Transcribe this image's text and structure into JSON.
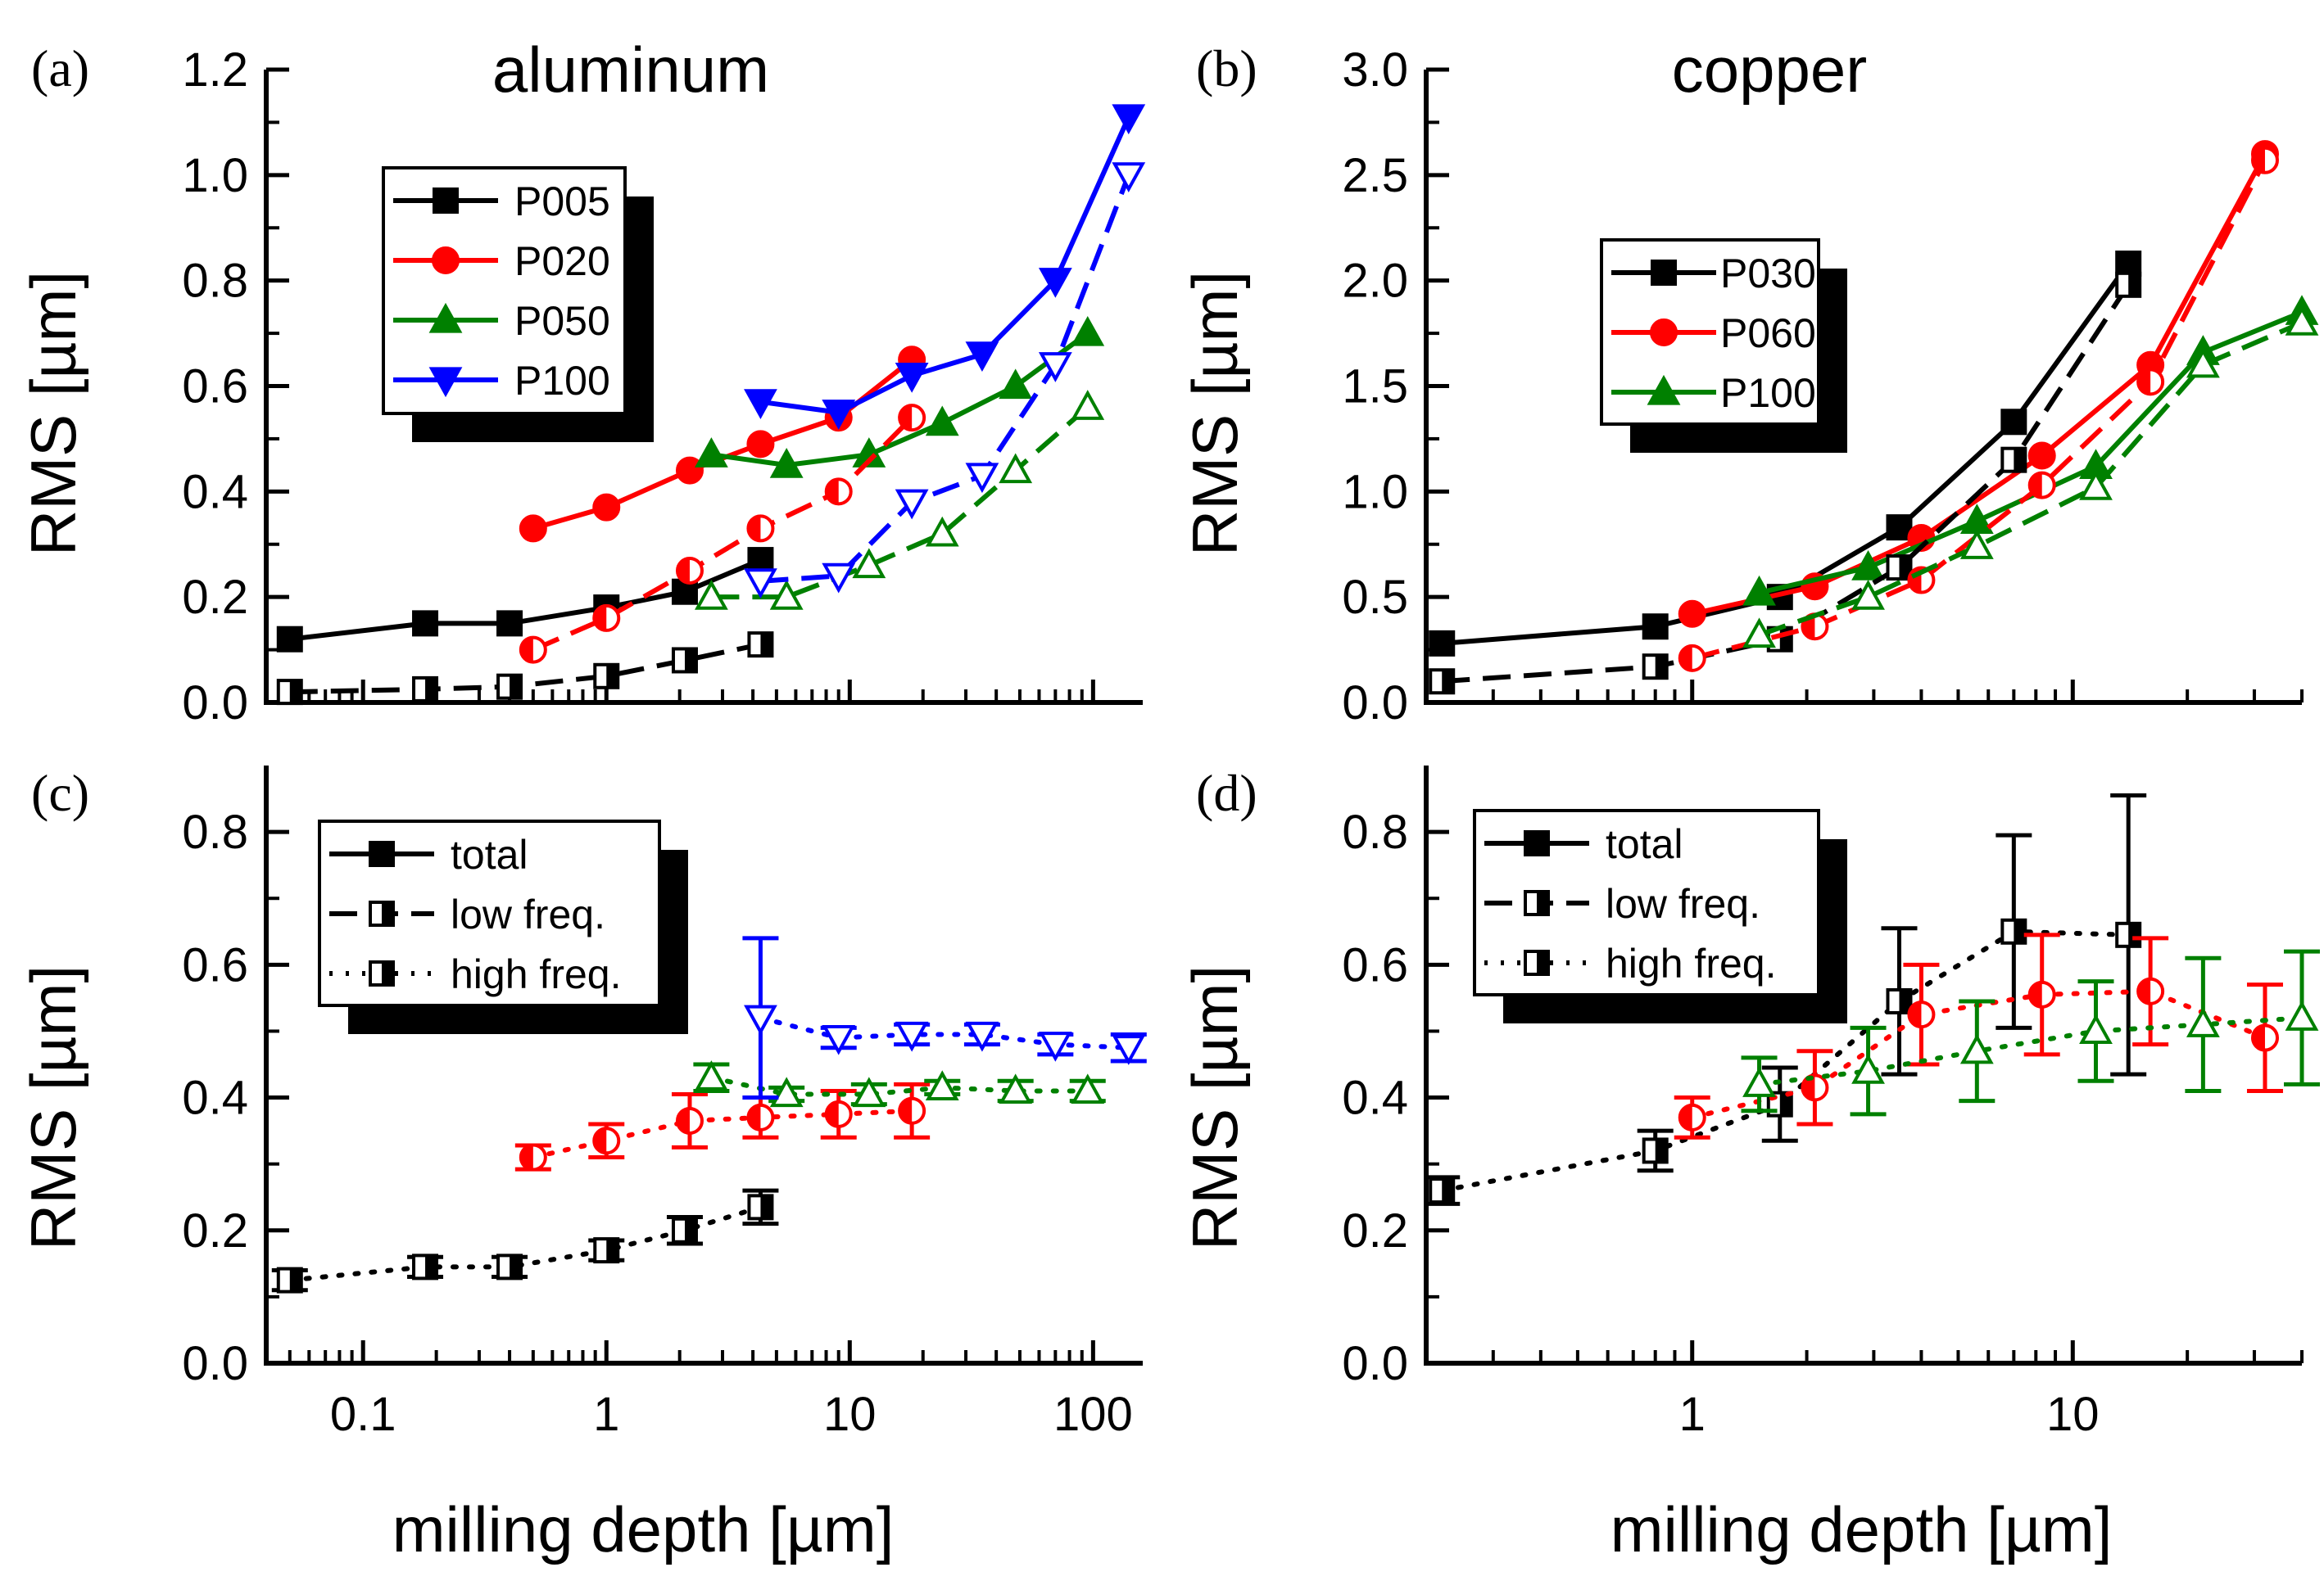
{
  "colors": {
    "black": "#000000",
    "red": "#ff0000",
    "green": "#008000",
    "blue": "#0000ff"
  },
  "chart_data": [
    {
      "type": "line",
      "panel": "a",
      "label": "(a)",
      "title": "aluminum",
      "xlabel": "",
      "ylabel": "RMS [µm]",
      "xscale": "log",
      "xlim": [
        0.04,
        160
      ],
      "ylim": [
        0,
        1.2
      ],
      "xticks": [],
      "yticks": [
        "0.0",
        "0.2",
        "0.4",
        "0.6",
        "0.8",
        "1.0",
        "1.2"
      ],
      "legend": {
        "placement": "top-left",
        "entries": [
          {
            "label": "P005",
            "color": "black",
            "marker": "square"
          },
          {
            "label": "P020",
            "color": "red",
            "marker": "circle"
          },
          {
            "label": "P050",
            "color": "green",
            "marker": "triangle"
          },
          {
            "label": "P100",
            "color": "blue",
            "marker": "triangle-down"
          }
        ]
      },
      "series": [
        {
          "name": "P005",
          "color": "black",
          "marker": "square",
          "style": "solid",
          "x": [
            0.05,
            0.18,
            0.4,
            1.0,
            2.1,
            4.3
          ],
          "y": [
            0.12,
            0.15,
            0.15,
            0.18,
            0.21,
            0.27
          ]
        },
        {
          "name": "P020",
          "color": "red",
          "marker": "circle",
          "style": "solid",
          "x": [
            0.5,
            1.0,
            2.2,
            4.3,
            9.0,
            18
          ],
          "y": [
            0.33,
            0.37,
            0.44,
            0.49,
            0.54,
            0.65
          ]
        },
        {
          "name": "P050",
          "color": "green",
          "marker": "triangle",
          "style": "solid",
          "x": [
            2.7,
            5.5,
            12,
            24,
            48,
            95
          ],
          "y": [
            0.47,
            0.45,
            0.47,
            0.53,
            0.6,
            0.7
          ]
        },
        {
          "name": "P100",
          "color": "blue",
          "marker": "triangle-down",
          "style": "solid",
          "x": [
            4.3,
            9.0,
            18,
            35,
            70,
            140
          ],
          "y": [
            0.57,
            0.55,
            0.62,
            0.66,
            0.8,
            1.11
          ]
        },
        {
          "name": "P005 low freq.",
          "color": "black",
          "marker": "square-half",
          "style": "dash",
          "x": [
            0.05,
            0.18,
            0.4,
            1.0,
            2.1,
            4.3
          ],
          "y": [
            0.02,
            0.025,
            0.03,
            0.05,
            0.08,
            0.11
          ]
        },
        {
          "name": "P020 low freq.",
          "color": "red",
          "marker": "circle-half",
          "style": "dash",
          "x": [
            0.5,
            1.0,
            2.2,
            4.3,
            9.0,
            18
          ],
          "y": [
            0.1,
            0.16,
            0.25,
            0.33,
            0.4,
            0.54
          ]
        },
        {
          "name": "P050 low freq.",
          "color": "green",
          "marker": "triangle-open",
          "style": "dash",
          "x": [
            2.7,
            5.5,
            12,
            24,
            48,
            95
          ],
          "y": [
            0.2,
            0.2,
            0.26,
            0.32,
            0.44,
            0.56
          ]
        },
        {
          "name": "P100 low freq.",
          "color": "blue",
          "marker": "triangle-down-open",
          "style": "dash",
          "x": [
            4.3,
            9.0,
            18,
            35,
            70,
            140
          ],
          "y": [
            0.23,
            0.24,
            0.38,
            0.43,
            0.64,
            1.0
          ]
        }
      ]
    },
    {
      "type": "line",
      "panel": "b",
      "label": "(b)",
      "title": "copper",
      "xlabel": "",
      "ylabel": "RMS [µm]",
      "xscale": "log",
      "xlim": [
        0.2,
        40
      ],
      "ylim": [
        0,
        3.0
      ],
      "xticks": [],
      "yticks": [
        "0.0",
        "0.5",
        "1.0",
        "1.5",
        "2.0",
        "2.5",
        "3.0"
      ],
      "legend": {
        "placement": "top-left",
        "entries": [
          {
            "label": "P030",
            "color": "black",
            "marker": "square"
          },
          {
            "label": "P060",
            "color": "red",
            "marker": "circle"
          },
          {
            "label": "P100",
            "color": "green",
            "marker": "triangle"
          }
        ]
      },
      "series": [
        {
          "name": "P030",
          "color": "black",
          "marker": "square",
          "style": "solid",
          "x": [
            0.22,
            0.8,
            1.7,
            3.5,
            7.0,
            14
          ],
          "y": [
            0.28,
            0.36,
            0.5,
            0.83,
            1.33,
            2.08
          ]
        },
        {
          "name": "P060",
          "color": "red",
          "marker": "circle",
          "style": "solid",
          "x": [
            1.0,
            2.1,
            4.0,
            8.3,
            16,
            32
          ],
          "y": [
            0.42,
            0.55,
            0.78,
            1.17,
            1.6,
            2.6
          ]
        },
        {
          "name": "P100",
          "color": "green",
          "marker": "triangle",
          "style": "solid",
          "x": [
            1.5,
            2.9,
            5.6,
            11.5,
            22,
            40
          ],
          "y": [
            0.52,
            0.64,
            0.86,
            1.12,
            1.66,
            1.85
          ]
        },
        {
          "name": "P030 low freq.",
          "color": "black",
          "marker": "square-half",
          "style": "dash",
          "x": [
            0.22,
            0.8,
            1.7,
            3.5,
            7.0,
            14
          ],
          "y": [
            0.1,
            0.17,
            0.3,
            0.64,
            1.15,
            1.98
          ]
        },
        {
          "name": "P060 low freq.",
          "color": "red",
          "marker": "circle-half",
          "style": "dash",
          "x": [
            1.0,
            2.1,
            4.0,
            8.3,
            16,
            32
          ],
          "y": [
            0.21,
            0.36,
            0.58,
            1.03,
            1.52,
            2.57
          ]
        },
        {
          "name": "P100 low freq.",
          "color": "green",
          "marker": "triangle-open",
          "style": "dash",
          "x": [
            1.5,
            2.9,
            5.6,
            11.5,
            22,
            40
          ],
          "y": [
            0.32,
            0.5,
            0.74,
            1.02,
            1.6,
            1.8
          ]
        }
      ]
    },
    {
      "type": "scatter",
      "panel": "c",
      "label": "(c)",
      "title": "",
      "xlabel": "milling depth [µm]",
      "ylabel": "RMS [µm]",
      "xscale": "log",
      "xlim": [
        0.04,
        160
      ],
      "ylim": [
        0,
        0.9
      ],
      "xticks": [
        "0.1",
        "1",
        "10",
        "100"
      ],
      "yticks": [
        "0.0",
        "0.2",
        "0.4",
        "0.6",
        "0.8"
      ],
      "legend": {
        "placement": "top-left",
        "entries": [
          {
            "label": "total",
            "style": "solid",
            "marker": "square"
          },
          {
            "label": "low freq.",
            "style": "dash",
            "marker": "square-half"
          },
          {
            "label": "high freq.",
            "style": "dot",
            "marker": "square-half-right"
          }
        ]
      },
      "series": [
        {
          "name": "P005 high freq.",
          "color": "black",
          "marker": "square-half-right",
          "x": [
            0.05,
            0.18,
            0.4,
            1.0,
            2.1,
            4.3
          ],
          "y": [
            0.125,
            0.145,
            0.145,
            0.17,
            0.2,
            0.235
          ],
          "err": [
            0.015,
            0.015,
            0.015,
            0.015,
            0.02,
            0.025
          ]
        },
        {
          "name": "P020 high freq.",
          "color": "red",
          "marker": "circle-half",
          "x": [
            0.5,
            1.0,
            2.2,
            4.3,
            9.0,
            18
          ],
          "y": [
            0.31,
            0.335,
            0.365,
            0.37,
            0.375,
            0.38
          ],
          "err": [
            0.018,
            0.025,
            0.04,
            0.03,
            0.035,
            0.04
          ]
        },
        {
          "name": "P050 high freq.",
          "color": "green",
          "marker": "triangle-open",
          "x": [
            2.7,
            5.5,
            12,
            24,
            48,
            95
          ],
          "y": [
            0.43,
            0.405,
            0.405,
            0.415,
            0.41,
            0.41
          ],
          "err": [
            0.02,
            0.01,
            0.015,
            0.01,
            0.015,
            0.015
          ]
        },
        {
          "name": "P100 high freq.",
          "color": "blue",
          "marker": "triangle-down-open",
          "x": [
            4.3,
            9.0,
            18,
            35,
            70,
            140
          ],
          "y": [
            0.52,
            0.49,
            0.495,
            0.495,
            0.48,
            0.475
          ],
          "err": [
            0.12,
            0.015,
            0.015,
            0.015,
            0.015,
            0.02
          ]
        }
      ]
    },
    {
      "type": "scatter",
      "panel": "d",
      "label": "(d)",
      "title": "",
      "xlabel": "milling depth [µm]",
      "ylabel": "RMS [µm]",
      "xscale": "log",
      "xlim": [
        0.2,
        40
      ],
      "ylim": [
        0,
        0.9
      ],
      "xticks": [
        "1",
        "10"
      ],
      "yticks": [
        "0.0",
        "0.2",
        "0.4",
        "0.6",
        "0.8"
      ],
      "legend": {
        "placement": "top-left",
        "entries": [
          {
            "label": "total",
            "style": "solid",
            "marker": "square"
          },
          {
            "label": "low freq.",
            "style": "dash",
            "marker": "square-half"
          },
          {
            "label": "high freq.",
            "style": "dot",
            "marker": "square-half-right"
          }
        ]
      },
      "series": [
        {
          "name": "P030 high freq.",
          "color": "black",
          "marker": "square-half",
          "x": [
            0.22,
            0.8,
            1.7,
            3.5,
            7.0,
            14
          ],
          "y": [
            0.26,
            0.32,
            0.39,
            0.545,
            0.65,
            0.645
          ],
          "err": [
            0.02,
            0.03,
            0.055,
            0.11,
            0.145,
            0.21
          ]
        },
        {
          "name": "P060 high freq.",
          "color": "red",
          "marker": "circle-half",
          "x": [
            1.0,
            2.1,
            4.0,
            8.3,
            16,
            32
          ],
          "y": [
            0.37,
            0.415,
            0.525,
            0.555,
            0.56,
            0.49
          ],
          "err": [
            0.03,
            0.055,
            0.075,
            0.09,
            0.08,
            0.08
          ]
        },
        {
          "name": "P100 high freq.",
          "color": "green",
          "marker": "triangle-open",
          "x": [
            1.5,
            2.9,
            5.6,
            11.5,
            22,
            40
          ],
          "y": [
            0.42,
            0.44,
            0.47,
            0.5,
            0.51,
            0.52
          ],
          "err": [
            0.04,
            0.065,
            0.075,
            0.075,
            0.1,
            0.1
          ]
        }
      ]
    }
  ]
}
